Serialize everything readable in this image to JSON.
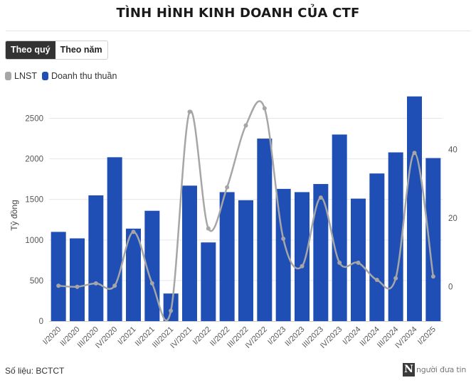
{
  "title": "TÌNH HÌNH KINH DOANH CỦA CTF",
  "toggle": {
    "quarterly": "Theo quý",
    "yearly": "Theo năm"
  },
  "legend": {
    "lnst": "LNST",
    "revenue": "Doanh thu thuần"
  },
  "source": "Số liệu: BCTCT",
  "logo": {
    "mark": "N",
    "text": "người đưa tin"
  },
  "colors": {
    "bar": "#1f4fb5",
    "line": "#a6a6a6",
    "active_toggle": "#333333"
  },
  "chart_data": {
    "type": "bar",
    "categories": [
      "I/2020",
      "II/2020",
      "III/2020",
      "IV/2020",
      "I/2021",
      "II/2021",
      "III/2021",
      "IV/2021",
      "I/2022",
      "II/2022",
      "III/2022",
      "IV/2022",
      "I/2023",
      "II/2023",
      "III/2023",
      "IV/2023",
      "I/2024",
      "II/2024",
      "III/2024",
      "IV/2024",
      "I/2025"
    ],
    "series": [
      {
        "name": "Doanh thu thuần",
        "type": "bar",
        "axis": "left",
        "values": [
          1100,
          1020,
          1550,
          2020,
          1140,
          1360,
          340,
          1670,
          970,
          1590,
          1490,
          2250,
          1630,
          1590,
          1690,
          2300,
          1510,
          1820,
          2080,
          2770,
          2010
        ]
      },
      {
        "name": "LNST",
        "type": "line",
        "axis": "right",
        "values": [
          0.3,
          0,
          1,
          0.3,
          16,
          1,
          -7,
          51,
          17,
          29,
          47,
          52,
          14,
          6,
          26,
          7,
          7,
          2,
          2.5,
          39,
          3
        ]
      }
    ],
    "ylabel": "Tỷ đồng",
    "ylim": [
      0,
      2750
    ],
    "y_ticks": [
      0,
      500,
      1000,
      1500,
      2000,
      2500
    ],
    "y2lim": [
      -10,
      55
    ],
    "y2_ticks": [
      0,
      20,
      40
    ],
    "grid": true,
    "legend_position": "top-left"
  }
}
